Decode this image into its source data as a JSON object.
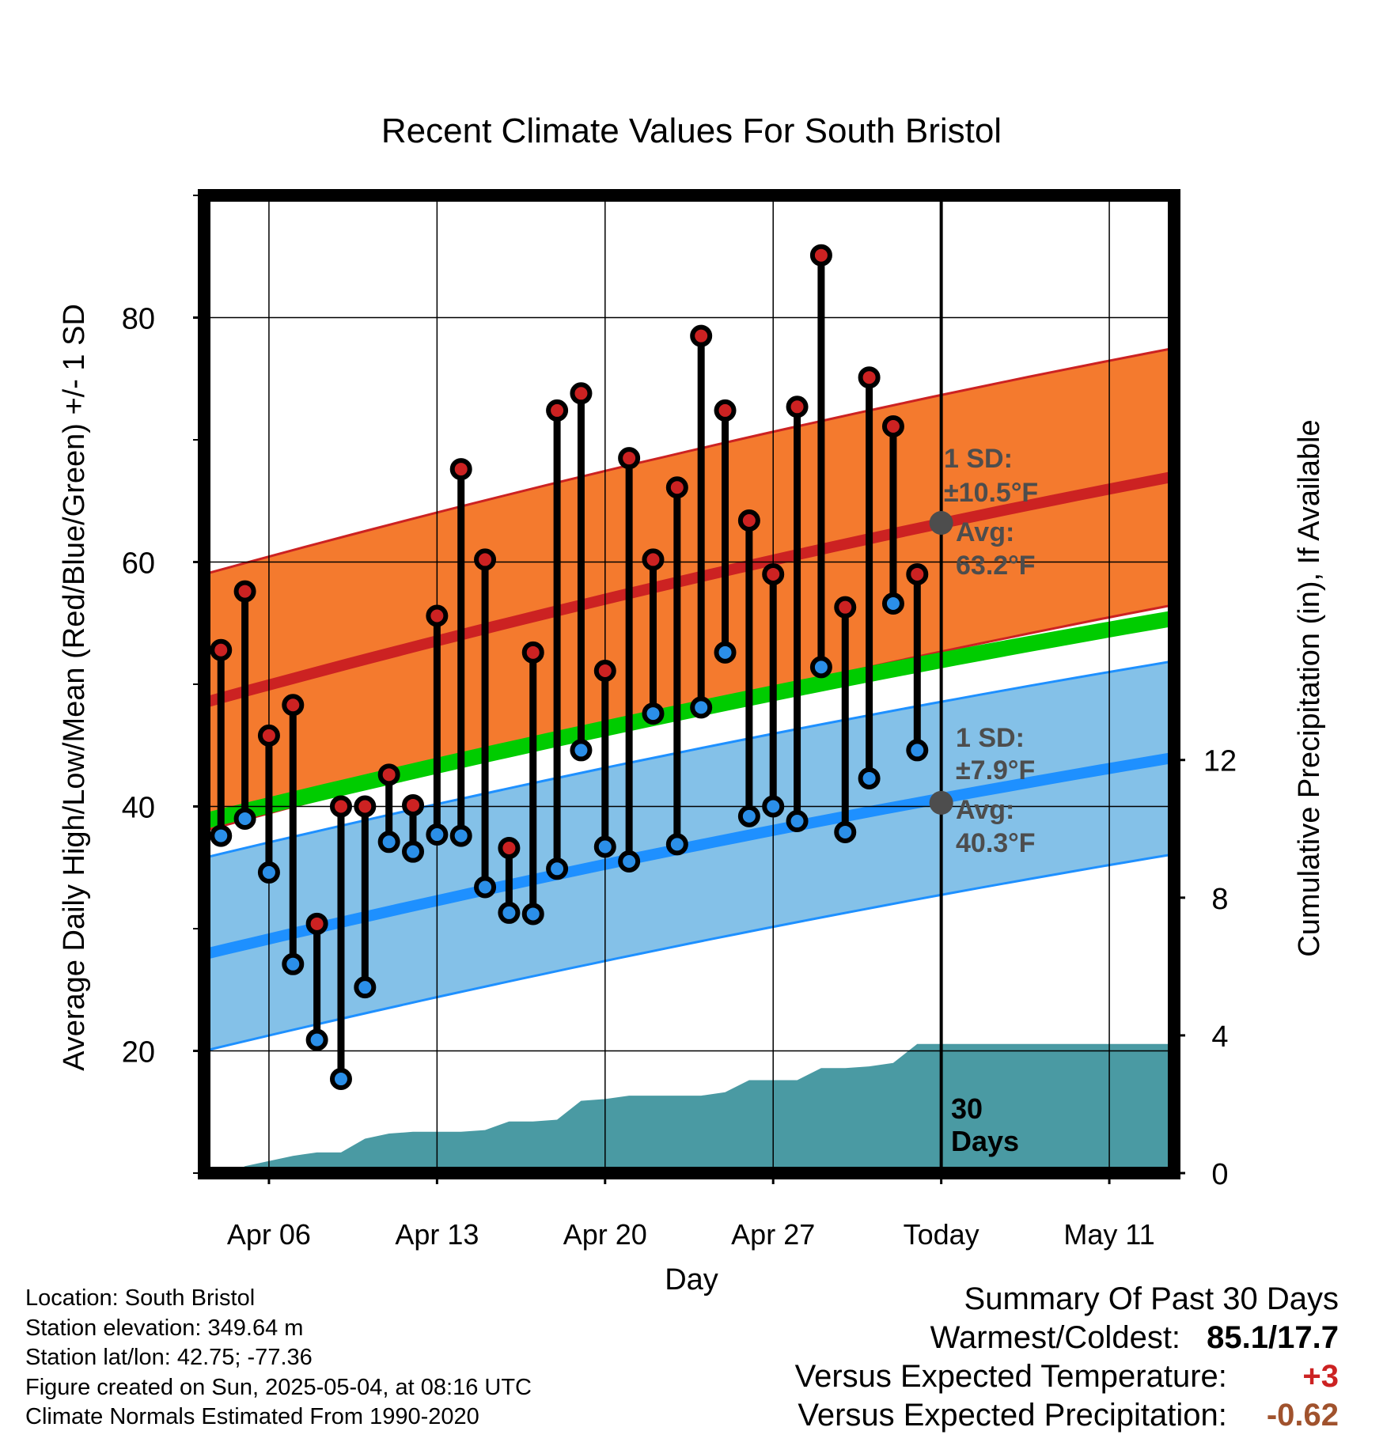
{
  "chart_data": {
    "type": "line",
    "title": "Recent Climate Values For South Bristol",
    "xlabel": "Day",
    "ylabel": "Average Daily High/Low/Mean (Red/Blue/Green) +/- 1 SD",
    "y2label": "Cumulative Precipitation (in), If Available",
    "ylim": [
      10,
      90
    ],
    "y2lim": [
      0,
      28.4
    ],
    "yticks": [
      20,
      40,
      60,
      80
    ],
    "y2ticks": [
      0,
      4,
      8,
      12
    ],
    "x_tick_labels": [
      "Apr 06",
      "Apr 13",
      "Apr 20",
      "Apr 27",
      "Today",
      "May 11"
    ],
    "x_tick_days": [
      6,
      13,
      20,
      27,
      34,
      41
    ],
    "xlim": [
      3.3,
      43.7
    ],
    "today_day": 34,
    "days": [
      4,
      5,
      6,
      7,
      8,
      9,
      10,
      11,
      12,
      13,
      14,
      15,
      16,
      17,
      18,
      19,
      20,
      21,
      22,
      23,
      24,
      25,
      26,
      27,
      28,
      29,
      30,
      31,
      32,
      33
    ],
    "series": [
      {
        "name": "High",
        "color": "#cc2222",
        "values": [
          52.8,
          57.6,
          45.8,
          48.3,
          30.4,
          40.0,
          40.0,
          42.6,
          40.1,
          55.6,
          67.6,
          60.2,
          36.6,
          52.6,
          72.4,
          73.8,
          51.1,
          68.5,
          60.2,
          66.1,
          78.5,
          72.4,
          63.4,
          59.0,
          72.7,
          85.1,
          56.3,
          75.1,
          71.1,
          59.0
        ]
      },
      {
        "name": "Low",
        "color": "#2b8fe8",
        "values": [
          37.6,
          39.0,
          34.6,
          27.1,
          20.9,
          17.7,
          25.2,
          37.1,
          36.3,
          37.7,
          37.6,
          33.4,
          31.3,
          31.2,
          34.9,
          44.6,
          36.7,
          35.5,
          47.6,
          36.9,
          48.1,
          52.6,
          39.2,
          40.0,
          38.8,
          51.4,
          37.9,
          42.3,
          56.6,
          44.6
        ]
      }
    ],
    "normals": {
      "high_mean": [
        48.5,
        67.0
      ],
      "high_sd": 10.5,
      "low_mean": [
        27.9,
        44.0
      ],
      "low_sd": 7.9,
      "mean_line": [
        38.8,
        55.4
      ],
      "range_days": [
        3.3,
        43.7
      ]
    },
    "precip_cumulative": {
      "days": [
        3.3,
        4.5,
        5.0,
        6.0,
        7.0,
        8.0,
        9.0,
        10.0,
        11.0,
        12.0,
        13.0,
        14.0,
        15.0,
        16.0,
        17.0,
        18.0,
        19.0,
        20.0,
        21.0,
        22.0,
        23.0,
        24.0,
        25.0,
        26.0,
        27.0,
        28.0,
        29.0,
        30.0,
        31.0,
        32.0,
        33.0,
        43.7
      ],
      "values": [
        0,
        0,
        0.2,
        0.35,
        0.5,
        0.6,
        0.6,
        1.0,
        1.15,
        1.2,
        1.2,
        1.2,
        1.25,
        1.5,
        1.5,
        1.55,
        2.1,
        2.15,
        2.25,
        2.25,
        2.25,
        2.25,
        2.35,
        2.7,
        2.7,
        2.7,
        3.05,
        3.05,
        3.1,
        3.2,
        3.75,
        3.75
      ]
    },
    "annotations": {
      "high_sd_label": "1 SD:",
      "high_sd_value": "±10.5°F",
      "high_avg_label": "Avg:",
      "high_avg_value": "63.2°F",
      "high_avg": 63.2,
      "low_sd_label": "1 SD:",
      "low_sd_value": "±7.9°F",
      "low_avg_label": "Avg:",
      "low_avg_value": "40.3°F",
      "low_avg": 40.3,
      "days_count": "30",
      "days_word": "Days"
    },
    "colors": {
      "high_band": "#f47a2e",
      "high_line": "#cc2222",
      "low_band": "#84c1e8",
      "low_line": "#1e90ff",
      "mean_line": "#00cc00",
      "precip": "#4a9aa3",
      "avg_marker": "#4d4d4d"
    }
  },
  "footer": {
    "location": "Location: South Bristol",
    "elevation": "Station elevation: 349.64 m",
    "latlon": "Station lat/lon: 42.75; -77.36",
    "created": "Figure created on Sun, 2025-05-04, at 08:16 UTC",
    "normals": "Climate Normals Estimated From 1990-2020"
  },
  "summary": {
    "title": "Summary Of Past 30 Days",
    "warm_cold_label": "Warmest/Coldest:",
    "warm_cold_value": "85.1/17.7",
    "temp_label": "Versus Expected Temperature:",
    "temp_value": "+3",
    "temp_color": "#cc2222",
    "precip_label": "Versus Expected Precipitation:",
    "precip_value": "-0.62",
    "precip_color": "#a0522d"
  }
}
